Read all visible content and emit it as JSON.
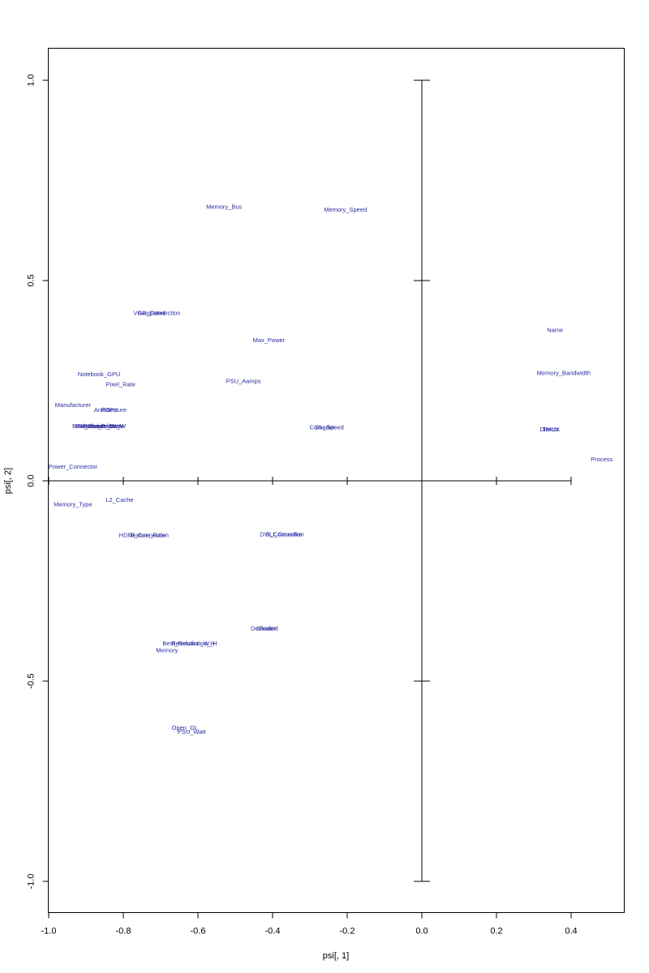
{
  "chart_data": {
    "type": "scatter",
    "xlabel": "psi[, 1]",
    "ylabel": "psi[, 2]",
    "xlim": [
      -1.0,
      0.53
    ],
    "ylim": [
      -1.08,
      1.08
    ],
    "grid": false,
    "x_ticks": [
      -1.0,
      -0.8,
      -0.6,
      -0.4,
      -0.2,
      0.0,
      0.2,
      0.4
    ],
    "y_ticks": [
      -1.0,
      -0.5,
      0.0,
      0.5,
      1.0
    ],
    "x_tick_labels": [
      "-1.0",
      "-0.8",
      "-0.6",
      "-0.4",
      "-0.2",
      "0.0",
      "0.2",
      "0.4"
    ],
    "y_tick_labels": [
      "-1.0",
      "-0.5",
      "0.0",
      "0.5",
      "1.0"
    ],
    "label_color": "#2B2BA0",
    "points": [
      {
        "label": "Memory_Bus",
        "x": -0.53,
        "y": 0.685
      },
      {
        "label": "Memory_Speed",
        "x": -0.205,
        "y": 0.678
      },
      {
        "label": "Integrated",
        "x": -0.725,
        "y": 0.42
      },
      {
        "label": "VGA_Connection",
        "x": -0.71,
        "y": 0.42
      },
      {
        "label": "Name",
        "x": 0.357,
        "y": 0.378
      },
      {
        "label": "Max_Power",
        "x": -0.41,
        "y": 0.352
      },
      {
        "label": "Memory_Bandwidth",
        "x": 0.38,
        "y": 0.27
      },
      {
        "label": "Notebook_GPU",
        "x": -0.865,
        "y": 0.267
      },
      {
        "label": "PSU_Aamps",
        "x": -0.478,
        "y": 0.25
      },
      {
        "label": "Pixel_Rate",
        "x": -0.807,
        "y": 0.242
      },
      {
        "label": "Manufacturer",
        "x": -0.935,
        "y": 0.19
      },
      {
        "label": "Architecture",
        "x": -0.835,
        "y": 0.178
      },
      {
        "label": "ROPs",
        "x": -0.838,
        "y": 0.178
      },
      {
        "label": "Best_Resolution_W",
        "x": -0.865,
        "y": 0.138
      },
      {
        "label": "Release_Date",
        "x": -0.855,
        "y": 0.138
      },
      {
        "label": "Resolution_WxH",
        "x": -0.86,
        "y": 0.138
      },
      {
        "label": "Release_Price",
        "x": -0.875,
        "y": 0.138
      },
      {
        "label": "Core_Speed",
        "x": -0.255,
        "y": 0.135
      },
      {
        "label": "Shader",
        "x": -0.26,
        "y": 0.135
      },
      {
        "label": "DirectX",
        "x": 0.343,
        "y": 0.13
      },
      {
        "label": "TMUs",
        "x": 0.345,
        "y": 0.13
      },
      {
        "label": "Process",
        "x": 0.482,
        "y": 0.055
      },
      {
        "label": "Power_Connector",
        "x": -0.935,
        "y": 0.036
      },
      {
        "label": "L2_Cache",
        "x": -0.81,
        "y": -0.047
      },
      {
        "label": "Memory_Type",
        "x": -0.935,
        "y": -0.058
      },
      {
        "label": "HDMI_Connection",
        "x": -0.745,
        "y": -0.135
      },
      {
        "label": "Texture_Rate",
        "x": -0.735,
        "y": -0.135
      },
      {
        "label": "DVI_Connection",
        "x": -0.375,
        "y": -0.133
      },
      {
        "label": "SLI_Crossfire",
        "x": -0.37,
        "y": -0.133
      },
      {
        "label": "Dedicated",
        "x": -0.422,
        "y": -0.367
      },
      {
        "label": "Shader",
        "x": -0.417,
        "y": -0.367
      },
      {
        "label": "Best_Resolution_H",
        "x": -0.625,
        "y": -0.405
      },
      {
        "label": "Resolution_W_H",
        "x": -0.61,
        "y": -0.405
      },
      {
        "label": "Memory",
        "x": -0.683,
        "y": -0.422
      },
      {
        "label": "Open_GL",
        "x": -0.635,
        "y": -0.615
      },
      {
        "label": "PSU_Watt",
        "x": -0.617,
        "y": -0.625
      }
    ]
  }
}
